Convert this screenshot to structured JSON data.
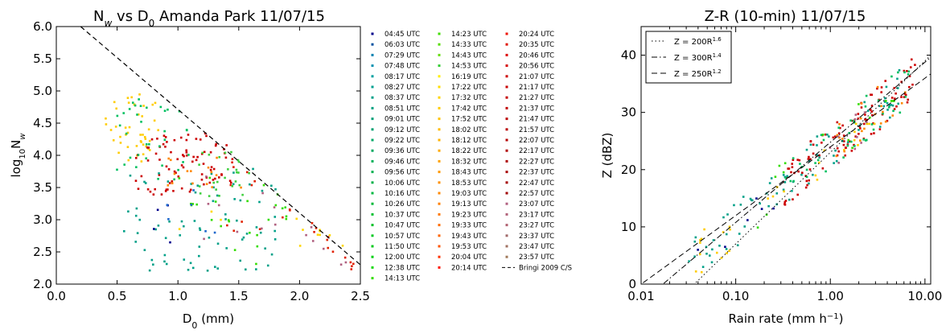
{
  "chart_data": [
    {
      "type": "scatter",
      "title_parts": [
        "N",
        "w",
        " vs D",
        "0",
        " Amanda Park 11/07/15"
      ],
      "xlabel_parts": [
        "D",
        "0",
        " (mm)"
      ],
      "ylabel_parts": [
        "log",
        "10",
        "N",
        "w"
      ],
      "xlim": [
        0.0,
        2.5
      ],
      "ylim": [
        2.0,
        6.0
      ],
      "xticks": [
        "0.0",
        "0.5",
        "1.0",
        "1.5",
        "2.0",
        "2.5"
      ],
      "yticks": [
        "2.0",
        "2.5",
        "3.0",
        "3.5",
        "4.0",
        "4.5",
        "5.0",
        "5.5",
        "6.0"
      ],
      "legend_position": "right, outside (three columns)",
      "legend_columns": [
        [
          "04:45 UTC",
          "06:03 UTC",
          "07:29 UTC",
          "07:48 UTC",
          "08:17 UTC",
          "08:27 UTC",
          "08:37 UTC",
          "08:51 UTC",
          "09:01 UTC",
          "09:12 UTC",
          "09:22 UTC",
          "09:36 UTC",
          "09:46 UTC",
          "09:56 UTC",
          "10:06 UTC",
          "10:16 UTC",
          "10:26 UTC",
          "10:37 UTC",
          "10:47 UTC",
          "10:57 UTC",
          "11:50 UTC",
          "12:00 UTC",
          "12:38 UTC",
          "14:13 UTC"
        ],
        [
          "14:23 UTC",
          "14:33 UTC",
          "14:43 UTC",
          "14:53 UTC",
          "16:19 UTC",
          "17:22 UTC",
          "17:32 UTC",
          "17:42 UTC",
          "17:52 UTC",
          "18:02 UTC",
          "18:12 UTC",
          "18:22 UTC",
          "18:32 UTC",
          "18:43 UTC",
          "18:53 UTC",
          "19:03 UTC",
          "19:13 UTC",
          "19:23 UTC",
          "19:33 UTC",
          "19:43 UTC",
          "19:53 UTC",
          "20:04 UTC",
          "20:14 UTC"
        ],
        [
          "20:24 UTC",
          "20:35 UTC",
          "20:46 UTC",
          "20:56 UTC",
          "21:07 UTC",
          "21:17 UTC",
          "21:27 UTC",
          "21:37 UTC",
          "21:47 UTC",
          "21:57 UTC",
          "22:07 UTC",
          "22:17 UTC",
          "22:27 UTC",
          "22:37 UTC",
          "22:47 UTC",
          "22:57 UTC",
          "23:07 UTC",
          "23:17 UTC",
          "23:27 UTC",
          "23:37 UTC",
          "23:47 UTC",
          "23:57 UTC"
        ]
      ],
      "reference_line": {
        "label": "Bringi 2009 C/S",
        "x": [
          0.2,
          2.5
        ],
        "y": [
          6.0,
          2.3
        ],
        "style": "dashed",
        "color": "#000000"
      },
      "clusters": [
        {
          "color": "#ffcc00",
          "n": 45,
          "x": [
            0.4,
            0.85
          ],
          "y": [
            3.9,
            4.95
          ]
        },
        {
          "color": "#ffd700",
          "n": 12,
          "x": [
            1.0,
            2.45
          ],
          "y": [
            2.5,
            3.6
          ]
        },
        {
          "color": "#cc0000",
          "n": 85,
          "x": [
            0.65,
            1.45
          ],
          "y": [
            3.35,
            4.35
          ]
        },
        {
          "color": "#e02000",
          "n": 25,
          "x": [
            1.4,
            2.45
          ],
          "y": [
            2.8,
            3.9
          ]
        },
        {
          "color": "#00a088",
          "n": 75,
          "x": [
            0.55,
            1.85
          ],
          "y": [
            2.2,
            3.85
          ]
        },
        {
          "color": "#00c060",
          "n": 35,
          "x": [
            0.45,
            1.15
          ],
          "y": [
            3.6,
            4.9
          ]
        },
        {
          "color": "#33dd00",
          "n": 25,
          "x": [
            1.0,
            1.9
          ],
          "y": [
            2.3,
            3.7
          ]
        },
        {
          "color": "#40d040",
          "n": 25,
          "x": [
            1.15,
            1.6
          ],
          "y": [
            3.3,
            4.1
          ]
        },
        {
          "color": "#b06080",
          "n": 15,
          "x": [
            1.2,
            2.45
          ],
          "y": [
            2.7,
            3.7
          ]
        },
        {
          "color": "#ff8800",
          "n": 15,
          "x": [
            0.9,
            1.6
          ],
          "y": [
            3.4,
            4.0
          ]
        },
        {
          "color": "#00008b",
          "n": 4,
          "x": [
            0.8,
            1.0
          ],
          "y": [
            2.6,
            3.4
          ]
        },
        {
          "color": "#1a66cc",
          "n": 6,
          "x": [
            0.9,
            1.35
          ],
          "y": [
            2.7,
            3.6
          ]
        }
      ]
    },
    {
      "type": "scatter",
      "title": "Z-R (10-min) 11/07/15",
      "xlabel_parts": [
        "Rain rate (mm h",
        "−1",
        ")"
      ],
      "ylabel": "Z (dBZ)",
      "xscale": "log",
      "xlim": [
        0.01,
        11.5
      ],
      "ylim": [
        0,
        45
      ],
      "xticks": [
        [
          0.01,
          "0.01"
        ],
        [
          0.1,
          "0.10"
        ],
        [
          1,
          "1.00"
        ],
        [
          10,
          "10.00"
        ]
      ],
      "yticks": [
        "0",
        "10",
        "20",
        "30",
        "40"
      ],
      "legend_position": "top-left",
      "legend": [
        {
          "base": "Z = 200R",
          "exp": "1.6",
          "style": "dotted"
        },
        {
          "base": "Z = 300R",
          "exp": "1.4",
          "style": "dashdot"
        },
        {
          "base": "Z = 250R",
          "exp": "1.2",
          "style": "dashed"
        }
      ],
      "relations": [
        {
          "a": 200,
          "b": 1.6
        },
        {
          "a": 300,
          "b": 1.4
        },
        {
          "a": 250,
          "b": 1.2
        }
      ],
      "clusters": [
        {
          "color": "#cc0000",
          "n": 110,
          "lr": [
            -0.5,
            0.9
          ],
          "z": [
            12,
            40
          ]
        },
        {
          "color": "#00a088",
          "n": 80,
          "lr": [
            -1.5,
            0.8
          ],
          "z": [
            3,
            38
          ]
        },
        {
          "color": "#00c060",
          "n": 40,
          "lr": [
            -0.5,
            0.9
          ],
          "z": [
            18,
            40
          ]
        },
        {
          "color": "#ffcc00",
          "n": 30,
          "lr": [
            -1.45,
            0.6
          ],
          "z": [
            0,
            28
          ]
        },
        {
          "color": "#33dd00",
          "n": 15,
          "lr": [
            -1.0,
            0.7
          ],
          "z": [
            7,
            32
          ]
        },
        {
          "color": "#ff8800",
          "n": 20,
          "lr": [
            0.0,
            0.8
          ],
          "z": [
            22,
            36
          ]
        },
        {
          "color": "#00008b",
          "n": 6,
          "lr": [
            -1.5,
            -0.6
          ],
          "z": [
            3,
            26
          ]
        },
        {
          "color": "#b06080",
          "n": 10,
          "lr": [
            -0.3,
            0.5
          ],
          "z": [
            15,
            30
          ]
        }
      ]
    }
  ]
}
